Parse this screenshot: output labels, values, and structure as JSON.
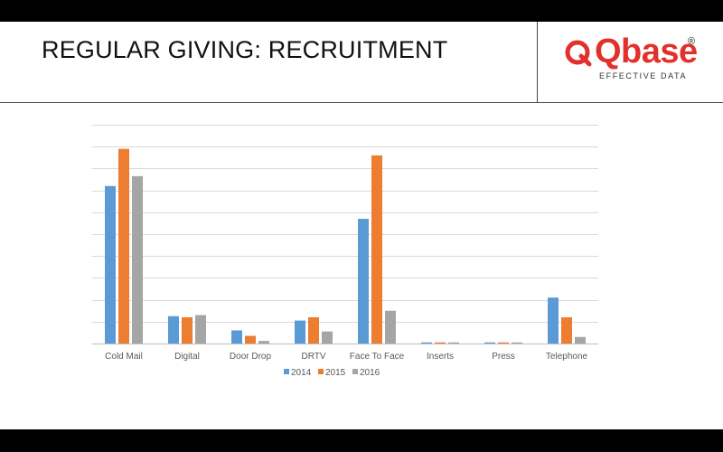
{
  "header": {
    "title": "REGULAR GIVING: RECRUITMENT",
    "logo_text": "Qbase",
    "logo_registered": "®",
    "logo_tagline": "EFFECTIVE DATA"
  },
  "colors": {
    "brand_red": "#e2312c",
    "series_2014": "#5b9bd5",
    "series_2015": "#ed7d31",
    "series_2016": "#a5a5a5",
    "gridline": "#d9d9d9"
  },
  "chart_data": {
    "type": "bar",
    "title": "",
    "xlabel": "",
    "ylabel": "",
    "ylim": [
      0,
      10
    ],
    "grid": true,
    "y_tick_labels_visible": false,
    "legend_position": "bottom",
    "categories": [
      "Cold Mail",
      "Digital",
      "Door Drop",
      "DRTV",
      "Face To Face",
      "Inserts",
      "Press",
      "Telephone"
    ],
    "series": [
      {
        "name": "2014",
        "color": "#5b9bd5",
        "values": [
          7.2,
          1.25,
          0.6,
          1.05,
          5.7,
          0.05,
          0.05,
          2.1
        ]
      },
      {
        "name": "2015",
        "color": "#ed7d31",
        "values": [
          8.9,
          1.2,
          0.35,
          1.2,
          8.6,
          0.05,
          0.05,
          1.2
        ]
      },
      {
        "name": "2016",
        "color": "#a5a5a5",
        "values": [
          7.65,
          1.3,
          0.12,
          0.55,
          1.5,
          0.05,
          0.05,
          0.3
        ]
      }
    ]
  }
}
